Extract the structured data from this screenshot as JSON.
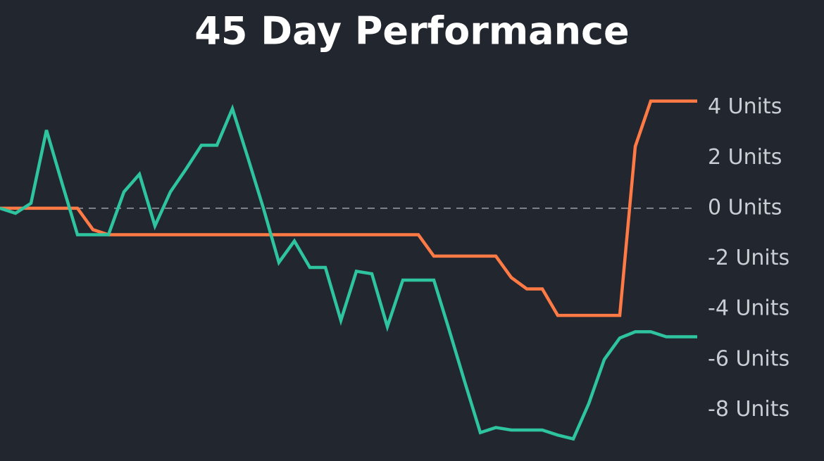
{
  "chart_data": {
    "type": "line",
    "title": "45 Day Performance",
    "x": [
      0,
      1,
      2,
      3,
      4,
      5,
      6,
      7,
      8,
      9,
      10,
      11,
      12,
      13,
      14,
      15,
      16,
      17,
      18,
      19,
      20,
      21,
      22,
      23,
      24,
      25,
      26,
      27,
      28,
      29,
      30,
      31,
      32,
      33,
      34,
      35,
      36,
      37,
      38,
      39,
      40,
      41,
      42,
      43,
      44,
      45
    ],
    "xlim": [
      0,
      45
    ],
    "ylim": [
      -10,
      6
    ],
    "yticks": [
      {
        "value": 4,
        "label": "4 Units"
      },
      {
        "value": 2,
        "label": "2 Units"
      },
      {
        "value": 0,
        "label": "0 Units"
      },
      {
        "value": -2,
        "label": "-2 Units"
      },
      {
        "value": -4,
        "label": "-4 Units"
      },
      {
        "value": -6,
        "label": "-6 Units"
      },
      {
        "value": -8,
        "label": "-8 Units"
      }
    ],
    "hline": 0,
    "series": [
      {
        "color": "#ff7a45",
        "values": [
          0,
          0,
          0,
          0,
          0,
          0,
          -0.85,
          -1.05,
          -1.05,
          -1.05,
          -1.05,
          -1.05,
          -1.05,
          -1.05,
          -1.05,
          -1.05,
          -1.05,
          -1.05,
          -1.05,
          -1.05,
          -1.05,
          -1.05,
          -1.05,
          -1.05,
          -1.05,
          -1.05,
          -1.05,
          -1.05,
          -1.9,
          -1.9,
          -1.9,
          -1.9,
          -1.9,
          -2.75,
          -3.2,
          -3.2,
          -4.25,
          -4.25,
          -4.25,
          -4.25,
          -4.25,
          2.45,
          4.25,
          4.25,
          4.25,
          4.25
        ]
      },
      {
        "color": "#2ec4a0",
        "values": [
          0,
          -0.2,
          0.2,
          3.1,
          1.0,
          -1.05,
          -1.05,
          -1.05,
          0.65,
          1.35,
          -0.7,
          0.65,
          1.55,
          2.5,
          2.5,
          3.95,
          2.0,
          0,
          -2.15,
          -1.3,
          -2.35,
          -2.35,
          -4.45,
          -2.5,
          -2.6,
          -4.7,
          -2.85,
          -2.85,
          -2.85,
          -4.85,
          -6.9,
          -8.9,
          -8.7,
          -8.8,
          -8.8,
          -8.8,
          -9.0,
          -9.15,
          -7.75,
          -6.0,
          -5.15,
          -4.9,
          -4.9,
          -5.1,
          -5.1,
          -5.1
        ]
      }
    ]
  }
}
